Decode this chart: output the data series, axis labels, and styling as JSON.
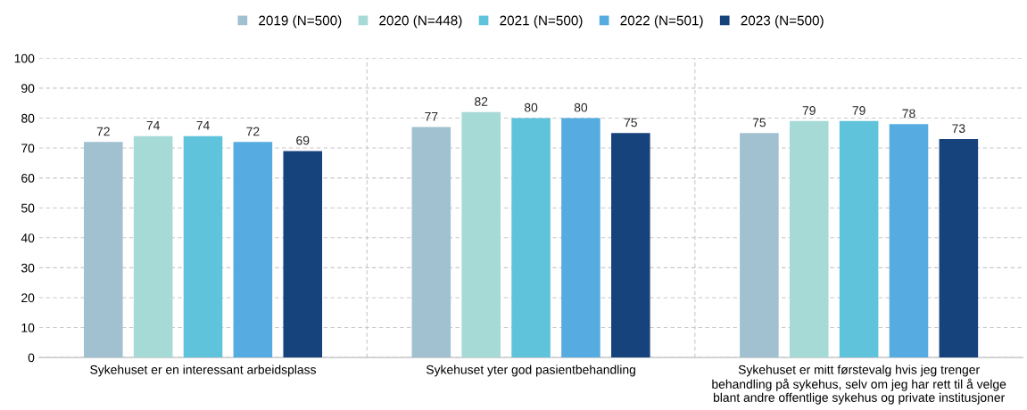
{
  "chart_data": {
    "type": "bar",
    "categories": [
      "Sykehuset er en interessant arbeidsplass",
      "Sykehuset yter god pasientbehandling",
      "Sykehuset er mitt førstevalg hvis jeg trenger\nbehandling på sykehus, selv om jeg har rett til å velge\nblant andre offentlige sykehus og private institusjoner"
    ],
    "series": [
      {
        "name": "2019 (N=500)",
        "color": "#a1c0d0",
        "values": [
          72,
          77,
          75
        ]
      },
      {
        "name": "2020 (N=448)",
        "color": "#a6dad6",
        "values": [
          74,
          82,
          79
        ]
      },
      {
        "name": "2021 (N=500)",
        "color": "#5fc3dc",
        "values": [
          74,
          80,
          79
        ]
      },
      {
        "name": "2022 (N=501)",
        "color": "#56abe0",
        "values": [
          72,
          80,
          78
        ]
      },
      {
        "name": "2023 (N=500)",
        "color": "#17437d",
        "values": [
          69,
          75,
          73
        ]
      }
    ],
    "ylim": [
      0,
      100
    ],
    "yticks": [
      0,
      10,
      20,
      30,
      40,
      50,
      60,
      70,
      80,
      90,
      100
    ],
    "grid": true,
    "legend": "top",
    "data_labels": true
  }
}
